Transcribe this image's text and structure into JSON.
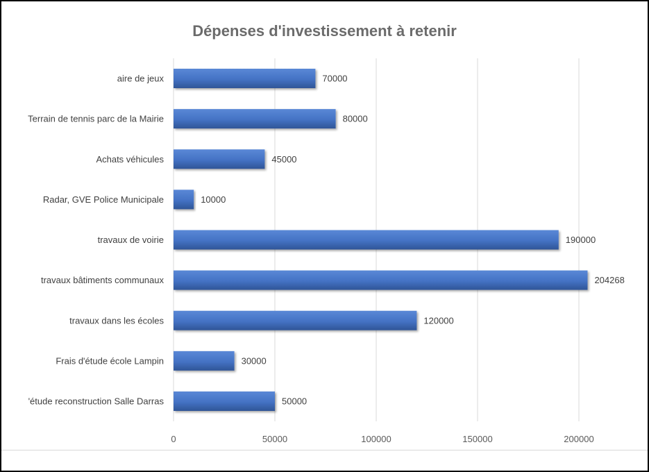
{
  "chart_data": {
    "type": "bar",
    "orientation": "horizontal",
    "title": "Dépenses d'investissement à retenir",
    "categories": [
      "aire de jeux",
      "Terrain de tennis parc de la Mairie",
      "Achats véhicules",
      "Radar, GVE Police Municipale",
      "travaux de voirie",
      "travaux bâtiments communaux",
      "travaux dans les écoles",
      "Frais d'étude école Lampin",
      "'étude reconstruction Salle Darras"
    ],
    "values": [
      70000,
      80000,
      45000,
      10000,
      190000,
      204268,
      120000,
      30000,
      50000
    ],
    "data_labels": [
      "70000",
      "80000",
      "45000",
      "10000",
      "190000",
      "204268",
      "120000",
      "30000",
      "50000"
    ],
    "x_ticks": [
      "0",
      "50000",
      "100000",
      "150000",
      "200000"
    ],
    "xlim": [
      0,
      225000
    ],
    "xlabel": "",
    "ylabel": "",
    "grid": "vertical",
    "legend": "none",
    "bar_color": "#4472C4",
    "title_color": "#6b6b6b"
  }
}
